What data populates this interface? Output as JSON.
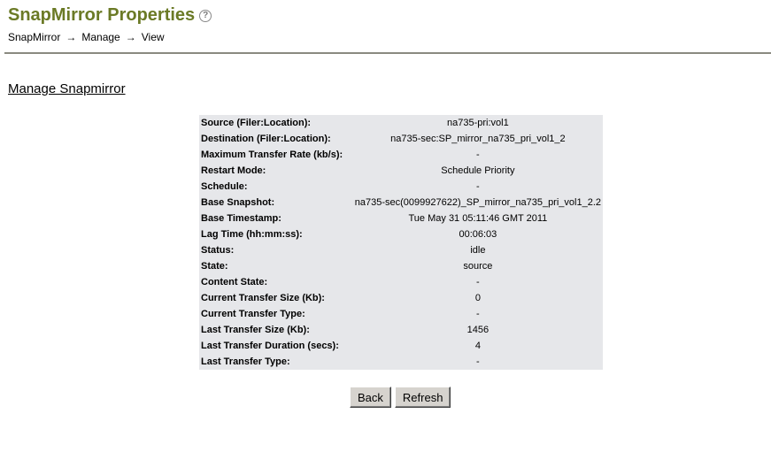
{
  "header": {
    "title": "SnapMirror Properties",
    "help_icon": "question-circle-icon",
    "breadcrumb": [
      "SnapMirror",
      "Manage",
      "View"
    ],
    "separator": "→"
  },
  "link": "Manage Snapmirror",
  "properties": [
    {
      "label": "Source (Filer:Location):",
      "value": "na735-pri:vol1"
    },
    {
      "label": "Destination (Filer:Location):",
      "value": "na735-sec:SP_mirror_na735_pri_vol1_2"
    },
    {
      "label": "Maximum Transfer Rate (kb/s):",
      "value": "-"
    },
    {
      "label": "Restart Mode:",
      "value": "Schedule Priority"
    },
    {
      "label": "Schedule:",
      "value": "-"
    },
    {
      "label": "Base Snapshot:",
      "value": "na735-sec(0099927622)_SP_mirror_na735_pri_vol1_2.2"
    },
    {
      "label": "Base Timestamp:",
      "value": "Tue May 31 05:11:46 GMT 2011"
    },
    {
      "label": "Lag Time (hh:mm:ss):",
      "value": "00:06:03"
    },
    {
      "label": "Status:",
      "value": "idle"
    },
    {
      "label": "State:",
      "value": "source"
    },
    {
      "label": "Content State:",
      "value": "-"
    },
    {
      "label": "Current Transfer Size (Kb):",
      "value": "0"
    },
    {
      "label": "Current Transfer Type:",
      "value": "-"
    },
    {
      "label": "Last Transfer Size (Kb):",
      "value": "1456"
    },
    {
      "label": "Last Transfer Duration (secs):",
      "value": "4"
    },
    {
      "label": "Last Transfer Type:",
      "value": "-"
    }
  ],
  "buttons": {
    "back": "Back",
    "refresh": "Refresh"
  }
}
